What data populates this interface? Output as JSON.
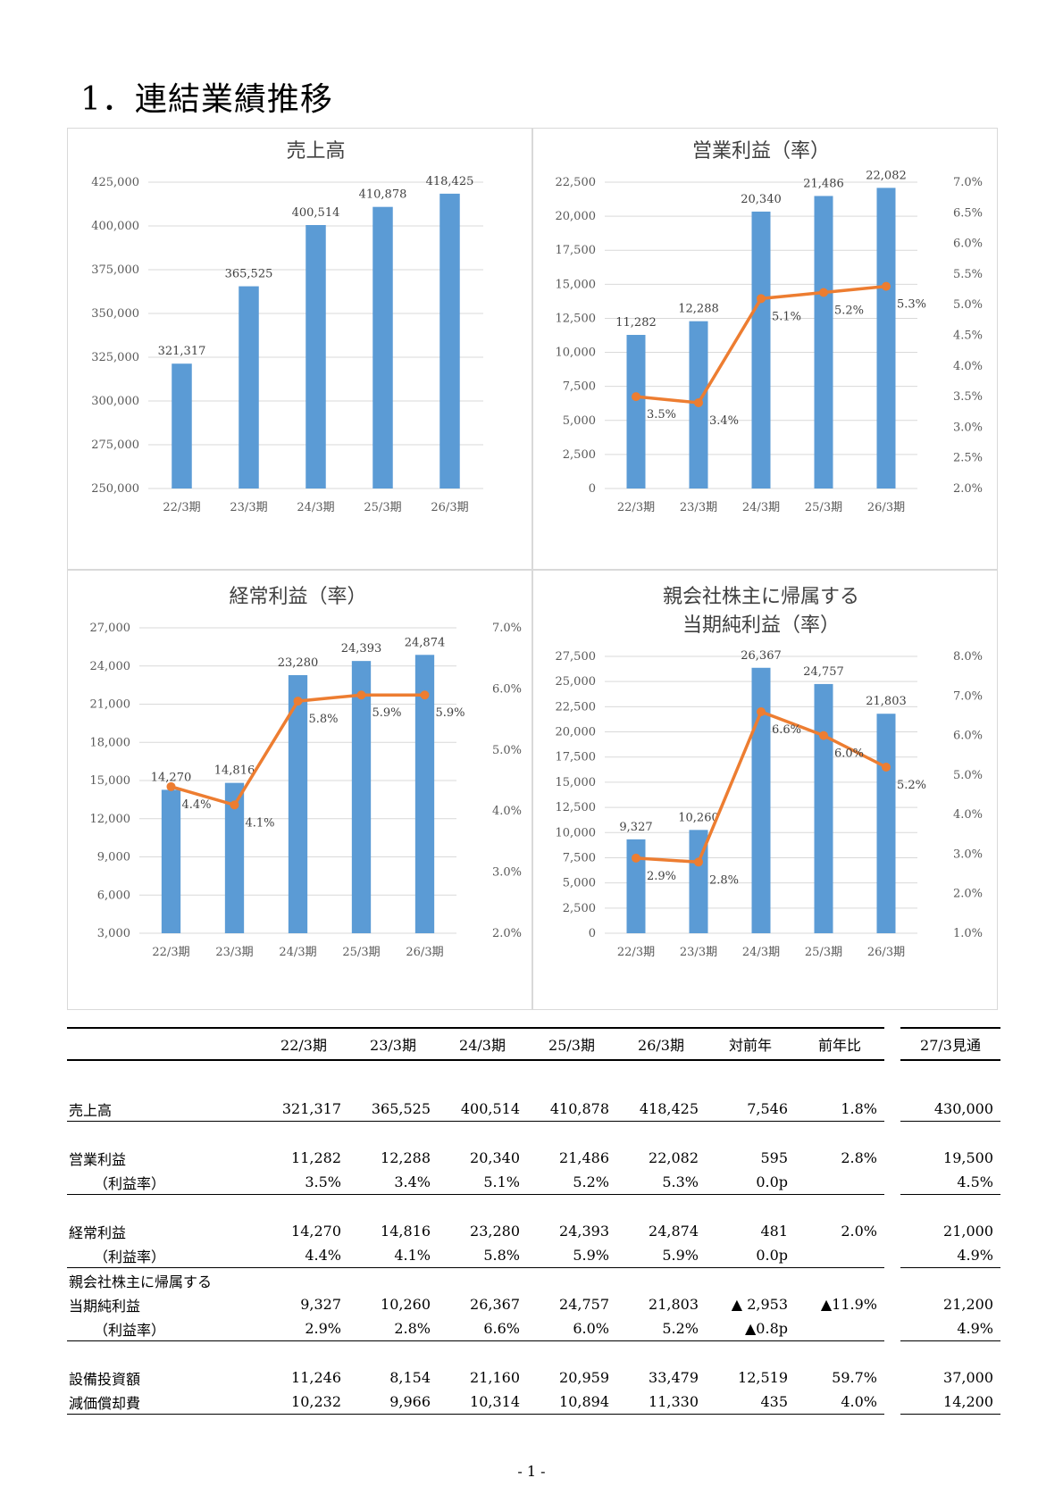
{
  "title": "1．連結業績推移",
  "page_number": "- 1 -",
  "colors": {
    "bar": "#5b9bd5",
    "line": "#ed7d31",
    "grid": "#d9d9d9",
    "text": "#595959"
  },
  "chart_data": [
    {
      "type": "bar",
      "title": "売上高",
      "categories": [
        "22/3期",
        "23/3期",
        "24/3期",
        "25/3期",
        "26/3期"
      ],
      "values": [
        321317,
        365525,
        400514,
        410878,
        418425
      ],
      "value_labels": [
        "321,317",
        "365,525",
        "400,514",
        "410,878",
        "418,425"
      ],
      "ylim": [
        250000,
        425000
      ],
      "yticks": [
        "250,000",
        "275,000",
        "300,000",
        "325,000",
        "350,000",
        "375,000",
        "400,000",
        "425,000"
      ],
      "grid": true
    },
    {
      "type": "bar",
      "title": "営業利益（率）",
      "categories": [
        "22/3期",
        "23/3期",
        "24/3期",
        "25/3期",
        "26/3期"
      ],
      "values": [
        11282,
        12288,
        20340,
        21486,
        22082
      ],
      "value_labels": [
        "11,282",
        "12,288",
        "20,340",
        "21,486",
        "22,082"
      ],
      "ylim": [
        0,
        22500
      ],
      "yticks": [
        "0",
        "2,500",
        "5,000",
        "7,500",
        "10,000",
        "12,500",
        "15,000",
        "17,500",
        "20,000",
        "22,500"
      ],
      "rate_values": [
        3.5,
        3.4,
        5.1,
        5.2,
        5.3
      ],
      "rate_labels": [
        "3.5%",
        "3.4%",
        "5.1%",
        "5.2%",
        "5.3%"
      ],
      "y2lim": [
        2.0,
        7.0
      ],
      "y2ticks": [
        "2.0%",
        "2.5%",
        "3.0%",
        "3.5%",
        "4.0%",
        "4.5%",
        "5.0%",
        "5.5%",
        "6.0%",
        "6.5%",
        "7.0%"
      ],
      "grid": true
    },
    {
      "type": "bar",
      "title": "経常利益（率）",
      "categories": [
        "22/3期",
        "23/3期",
        "24/3期",
        "25/3期",
        "26/3期"
      ],
      "values": [
        14270,
        14816,
        23280,
        24393,
        24874
      ],
      "value_labels": [
        "14,270",
        "14,816",
        "23,280",
        "24,393",
        "24,874"
      ],
      "ylim": [
        3000,
        27000
      ],
      "yticks": [
        "3,000",
        "6,000",
        "9,000",
        "12,000",
        "15,000",
        "18,000",
        "21,000",
        "24,000",
        "27,000"
      ],
      "rate_values": [
        4.4,
        4.1,
        5.8,
        5.9,
        5.9
      ],
      "rate_labels": [
        "4.4%",
        "4.1%",
        "5.8%",
        "5.9%",
        "5.9%"
      ],
      "y2lim": [
        2.0,
        7.0
      ],
      "y2ticks": [
        "2.0%",
        "3.0%",
        "4.0%",
        "5.0%",
        "6.0%",
        "7.0%"
      ],
      "grid": true
    },
    {
      "type": "bar",
      "title": "親会社株主に帰属する",
      "title2": "当期純利益（率）",
      "categories": [
        "22/3期",
        "23/3期",
        "24/3期",
        "25/3期",
        "26/3期"
      ],
      "values": [
        9327,
        10260,
        26367,
        24757,
        21803
      ],
      "value_labels": [
        "9,327",
        "10,260",
        "26,367",
        "24,757",
        "21,803"
      ],
      "ylim": [
        0,
        27500
      ],
      "yticks": [
        "0",
        "2,500",
        "5,000",
        "7,500",
        "10,000",
        "12,500",
        "15,000",
        "17,500",
        "20,000",
        "22,500",
        "25,000",
        "27,500"
      ],
      "rate_values": [
        2.9,
        2.8,
        6.6,
        6.0,
        5.2
      ],
      "rate_labels": [
        "2.9%",
        "2.8%",
        "6.6%",
        "6.0%",
        "5.2%"
      ],
      "y2lim": [
        1.0,
        8.0
      ],
      "y2ticks": [
        "1.0%",
        "2.0%",
        "3.0%",
        "4.0%",
        "5.0%",
        "6.0%",
        "7.0%",
        "8.0%"
      ],
      "grid": true
    }
  ],
  "table": {
    "headers": [
      "22/3期",
      "23/3期",
      "24/3期",
      "25/3期",
      "26/3期",
      "対前年",
      "前年比",
      "27/3見通"
    ],
    "sales": {
      "label": "売上高",
      "values": [
        "321,317",
        "365,525",
        "400,514",
        "410,878",
        "418,425",
        "7,546",
        "1.8%",
        "430,000"
      ]
    },
    "op": {
      "label": "営業利益",
      "values": [
        "11,282",
        "12,288",
        "20,340",
        "21,486",
        "22,082",
        "595",
        "2.8%",
        "19,500"
      ]
    },
    "op_rate": {
      "label": "（利益率）",
      "values": [
        "3.5%",
        "3.4%",
        "5.1%",
        "5.2%",
        "5.3%",
        "0.0p",
        "",
        "4.5%"
      ]
    },
    "ord": {
      "label": "経常利益",
      "values": [
        "14,270",
        "14,816",
        "23,280",
        "24,393",
        "24,874",
        "481",
        "2.0%",
        "21,000"
      ]
    },
    "ord_rate": {
      "label": "（利益率）",
      "values": [
        "4.4%",
        "4.1%",
        "5.8%",
        "5.9%",
        "5.9%",
        "0.0p",
        "",
        "4.9%"
      ]
    },
    "net_label1": "親会社株主に帰属する",
    "net": {
      "label": "当期純利益",
      "values": [
        "9,327",
        "10,260",
        "26,367",
        "24,757",
        "21,803",
        "▲ 2,953",
        "▲11.9%",
        "21,200"
      ]
    },
    "net_rate": {
      "label": "（利益率）",
      "values": [
        "2.9%",
        "2.8%",
        "6.6%",
        "6.0%",
        "5.2%",
        "▲0.8p",
        "",
        "4.9%"
      ]
    },
    "capex": {
      "label": "設備投資額",
      "values": [
        "11,246",
        "8,154",
        "21,160",
        "20,959",
        "33,479",
        "12,519",
        "59.7%",
        "37,000"
      ]
    },
    "dep": {
      "label": "減価償却費",
      "values": [
        "10,232",
        "9,966",
        "10,314",
        "10,894",
        "11,330",
        "435",
        "4.0%",
        "14,200"
      ]
    }
  }
}
